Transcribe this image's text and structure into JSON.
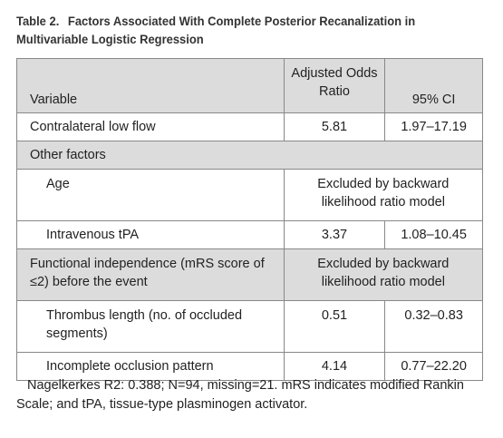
{
  "caption": {
    "label": "Table 2.",
    "title": "Factors Associated With Complete Posterior Recanalization in Multivariable Logistic Regression"
  },
  "header": {
    "variable": "Variable",
    "odds_ratio": "Adjusted Odds Ratio",
    "ci": "95% CI"
  },
  "rows": [
    {
      "label": "Contralateral low flow",
      "odds": "5.81",
      "ci": "1.97–17.19"
    },
    {
      "label": "Other factors"
    },
    {
      "label": "Age",
      "merged": "Excluded by backward likelihood ratio model"
    },
    {
      "label": "Intravenous tPA",
      "odds": "3.37",
      "ci": "1.08–10.45"
    },
    {
      "label": "Functional independence (mRS score of ≤2) before the event",
      "merged": "Excluded by backward likelihood ratio model"
    },
    {
      "label": "Thrombus length (no. of occluded segments)",
      "odds": "0.51",
      "ci": "0.32–0.83"
    },
    {
      "label": "Incomplete occlusion pattern",
      "odds": "4.14",
      "ci": "0.77–22.20"
    }
  ],
  "footnote": "Nagelkerkes R2: 0.388; N=94, missing=21. mRS indicates modified Rankin Scale; and tPA, tissue-type plasminogen activator."
}
